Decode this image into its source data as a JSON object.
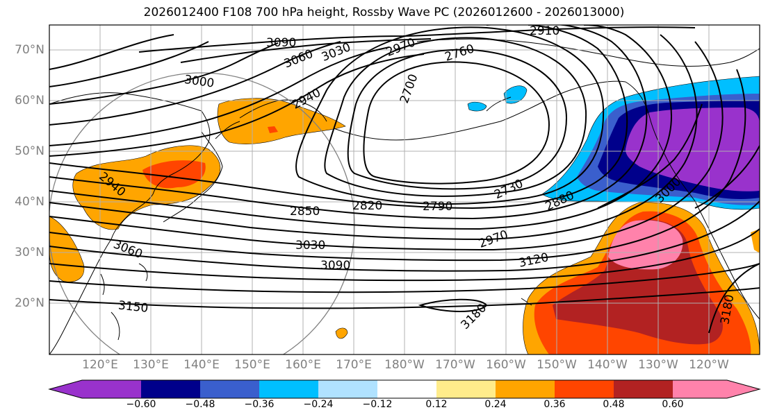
{
  "title": "2026012400 F108 700 hPa height, Rossby Wave PC (2026012600 - 2026013000)",
  "lat_labels": [
    "70°N",
    "60°N",
    "50°N",
    "40°N",
    "30°N",
    "20°N"
  ],
  "lon_labels": [
    "120°E",
    "130°E",
    "140°E",
    "150°E",
    "160°E",
    "170°E",
    "180°W",
    "170°W",
    "160°W",
    "150°W",
    "140°W",
    "130°W",
    "120°W"
  ],
  "contour_labels": {
    "c3090_top": "3090",
    "c3060_top": "3060",
    "c3030_top": "3030",
    "c2970_top": "2970",
    "c2910_top": "2910",
    "c2760_top": "2760",
    "c3000_left": "3000",
    "c2940_top": "2940",
    "c2700": "2700",
    "c2940_left": "2940",
    "c2730": "2730",
    "c2880": "2880",
    "c3000_right": "3000",
    "c2850": "2850",
    "c2820": "2820",
    "c2790": "2790",
    "c2970_mid": "2970",
    "c3060_left": "3060",
    "c3030_mid": "3030",
    "c3090_mid": "3090",
    "c3120": "3120",
    "c3150": "3150",
    "c3180_mid": "3180",
    "c3180_right": "3180"
  },
  "colorbar": {
    "ticks": [
      "−0.60",
      "−0.48",
      "−0.36",
      "−0.24",
      "−0.12",
      "0.12",
      "0.24",
      "0.36",
      "0.48",
      "0.60"
    ],
    "colors": [
      "#9932cc",
      "#00008b",
      "#3a5fcd",
      "#00bfff",
      "#b0e2ff",
      "#ffffff",
      "#ffec8b",
      "#ffa500",
      "#ff4500",
      "#b22222",
      "#ff82ab"
    ]
  },
  "map": {
    "lon_range": [
      "115°E",
      "115°W"
    ],
    "lat_range": [
      "10°N",
      "75°N"
    ],
    "gridlines": true,
    "variable": "700 hPa height",
    "contour_interval": 30,
    "shading": "Rossby Wave PC"
  }
}
